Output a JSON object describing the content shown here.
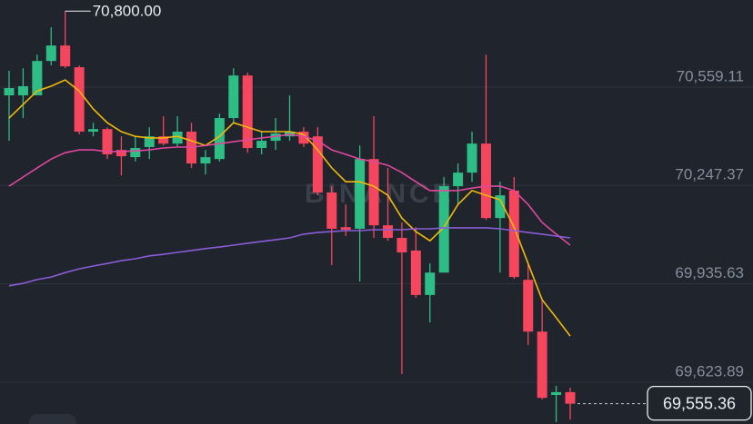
{
  "chart_data": {
    "type": "candlestick",
    "watermark": "BINANCE",
    "up_color": "#2ebd85",
    "down_color": "#f6465d",
    "open": [
      70533,
      70533,
      70533,
      70642,
      70691,
      70622,
      70418,
      70426,
      70360,
      70337,
      70369,
      70403,
      70380,
      70418,
      70317,
      70331,
      70461,
      70596,
      70366,
      70389,
      70403,
      70418,
      70403,
      70225,
      70115,
      70110,
      70331,
      70121,
      70081,
      70041,
      69900,
      69971,
      70245,
      70288,
      70380,
      70144,
      70231,
      69948,
      69784,
      69583,
      69592
    ],
    "high": [
      70611,
      70619,
      70662,
      70749,
      70800,
      70628,
      70446,
      70432,
      70403,
      70403,
      70432,
      70467,
      70467,
      70446,
      70360,
      70475,
      70619,
      70605,
      70418,
      70461,
      70533,
      70432,
      70432,
      70245,
      70187,
      70374,
      70467,
      70303,
      70130,
      70115,
      70000,
      70274,
      70317,
      70418,
      70662,
      70259,
      70274,
      70000,
      69885,
      69612,
      69606
    ],
    "low": [
      70389,
      70461,
      70533,
      70628,
      70619,
      70409,
      70403,
      70331,
      70279,
      70323,
      70331,
      70374,
      70369,
      70303,
      70282,
      70323,
      70446,
      70351,
      70346,
      70360,
      70389,
      70369,
      70216,
      69995,
      70087,
      69943,
      70081,
      70072,
      69649,
      69891,
      69813,
      69971,
      70187,
      70259,
      70138,
      69971,
      69951,
      69741,
      69569,
      69497,
      69505
    ],
    "close": [
      70556,
      70562,
      70642,
      70691,
      70625,
      70418,
      70426,
      70346,
      70340,
      70366,
      70403,
      70380,
      70418,
      70317,
      70337,
      70461,
      70596,
      70366,
      70389,
      70412,
      70418,
      70380,
      70225,
      70110,
      70107,
      70331,
      70121,
      70081,
      70035,
      69900,
      69971,
      70245,
      70288,
      70380,
      70144,
      70216,
      69957,
      69784,
      69574,
      69592,
      69555.36
    ],
    "lines": [
      {
        "color": "#f0b90b",
        "values": [
          70461,
          70504,
          70547,
          70562,
          70582,
          70547,
          70490,
          70446,
          70418,
          70403,
          70398,
          70398,
          70403,
          70389,
          70374,
          70403,
          70446,
          70432,
          70418,
          70418,
          70418,
          70409,
          70360,
          70303,
          70259,
          70259,
          70245,
          70216,
          70144,
          70101,
          70072,
          70115,
          70187,
          70231,
          70216,
          70202,
          70115,
          70000,
          69885,
          69828,
          69770
        ]
      },
      {
        "color": "#e0479e",
        "values": [
          70245,
          70274,
          70303,
          70331,
          70351,
          70360,
          70360,
          70355,
          70355,
          70357,
          70360,
          70366,
          70369,
          70369,
          70374,
          70380,
          70386,
          70392,
          70398,
          70403,
          70409,
          70403,
          70389,
          70360,
          70346,
          70331,
          70323,
          70311,
          70288,
          70259,
          70231,
          70231,
          70231,
          70239,
          70245,
          70245,
          70231,
          70187,
          70130,
          70093,
          70058
        ]
      },
      {
        "color": "#8b5cd6",
        "values": [
          69929,
          69937,
          69949,
          69957,
          69971,
          69983,
          69992,
          70000,
          70009,
          70015,
          70024,
          70029,
          70035,
          70041,
          70047,
          70052,
          70058,
          70064,
          70070,
          70075,
          70081,
          70093,
          70098,
          70101,
          70104,
          70104,
          70107,
          70107,
          70107,
          70110,
          70110,
          70113,
          70113,
          70113,
          70113,
          70110,
          70104,
          70098,
          70093,
          70087,
          70081
        ]
      }
    ],
    "ylim": [
      69491,
      70835.3
    ],
    "yticks": [
      {
        "value": 70559.11,
        "label": "70,559.11"
      },
      {
        "value": 70247.37,
        "label": "70,247.37"
      },
      {
        "value": 69935.63,
        "label": "69,935.63"
      },
      {
        "value": 69623.89,
        "label": "69,623.89"
      }
    ],
    "grid": true,
    "high_marker": {
      "value": 70800,
      "label": "70,800.00"
    },
    "last_price": {
      "value": 69555.36,
      "label": "69,555.36"
    }
  }
}
